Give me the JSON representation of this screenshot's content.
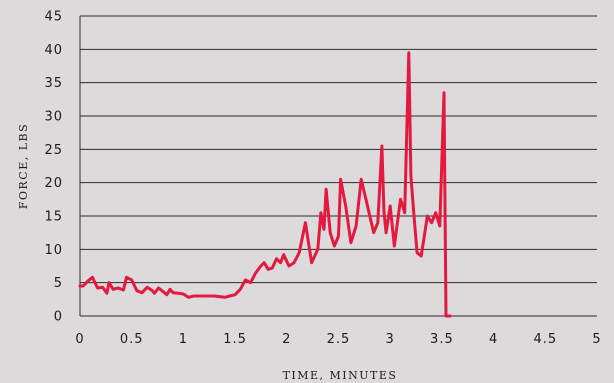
{
  "chart_data": {
    "type": "line",
    "title": "",
    "xlabel": "TIME, MINUTES",
    "ylabel": "FORCE, LBS",
    "xlim": [
      0,
      5
    ],
    "ylim": [
      0,
      45
    ],
    "x_ticks": [
      "0",
      "0.5",
      "1",
      "1.5",
      "2",
      "2.5",
      "3",
      "3.5",
      "4",
      "4.5",
      "5"
    ],
    "y_ticks": [
      "0",
      "5",
      "10",
      "15",
      "20",
      "25",
      "30",
      "35",
      "40",
      "45"
    ],
    "grid": "horizontal",
    "legend": "none",
    "line_color": "#e3193f",
    "series": [
      {
        "x": [
          0.0,
          0.03,
          0.08,
          0.12,
          0.17,
          0.22,
          0.26,
          0.28,
          0.32,
          0.37,
          0.42,
          0.45,
          0.5,
          0.55,
          0.6,
          0.65,
          0.7,
          0.72,
          0.76,
          0.8,
          0.84,
          0.87,
          0.9,
          0.95,
          1.0,
          1.05,
          1.1,
          1.2,
          1.3,
          1.4,
          1.45,
          1.5,
          1.55,
          1.6,
          1.65,
          1.7,
          1.75,
          1.78,
          1.82,
          1.86,
          1.9,
          1.94,
          1.97,
          2.02,
          2.07,
          2.12,
          2.18,
          2.24,
          2.3,
          2.33,
          2.36,
          2.38,
          2.42,
          2.46,
          2.5,
          2.52,
          2.57,
          2.62,
          2.67,
          2.72,
          2.78,
          2.84,
          2.88,
          2.92,
          2.94,
          2.96,
          3.0,
          3.04,
          3.1,
          3.14,
          3.18,
          3.2,
          3.23,
          3.26,
          3.3,
          3.36,
          3.4,
          3.44,
          3.48,
          3.52,
          3.54,
          3.58
        ],
        "y": [
          4.5,
          4.5,
          5.3,
          5.8,
          4.2,
          4.3,
          3.4,
          5.0,
          4.0,
          4.2,
          3.9,
          5.8,
          5.4,
          3.8,
          3.5,
          4.3,
          3.8,
          3.4,
          4.2,
          3.7,
          3.2,
          4.0,
          3.5,
          3.4,
          3.3,
          2.8,
          3.0,
          3.0,
          3.0,
          2.8,
          3.0,
          3.2,
          4.0,
          5.4,
          5.0,
          6.5,
          7.5,
          8.0,
          7.0,
          7.2,
          8.6,
          8.0,
          9.2,
          7.5,
          8.0,
          9.5,
          14.0,
          8.0,
          10.0,
          15.5,
          13.0,
          19.0,
          12.5,
          10.5,
          12.0,
          20.5,
          16.5,
          11.0,
          13.5,
          20.5,
          16.5,
          12.5,
          14.0,
          25.5,
          15.5,
          12.5,
          16.5,
          10.5,
          17.5,
          15.5,
          39.5,
          21.0,
          15.0,
          9.5,
          9.0,
          15.0,
          14.0,
          15.5,
          13.5,
          33.5,
          0,
          0
        ]
      }
    ]
  }
}
